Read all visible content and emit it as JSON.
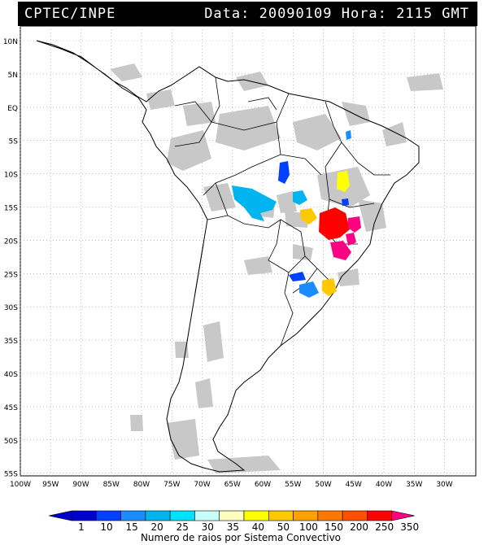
{
  "header": {
    "source": "CPTEC/INPE",
    "datetime": "Data: 20090109 Hora: 2115 GMT"
  },
  "map": {
    "lat_labels": [
      "10N",
      "5N",
      "EQ",
      "5S",
      "10S",
      "15S",
      "20S",
      "25S",
      "30S",
      "35S",
      "40S",
      "45S",
      "50S",
      "55S"
    ],
    "lon_labels": [
      "100W",
      "95W",
      "90W",
      "85W",
      "80W",
      "75W",
      "70W",
      "65W",
      "60W",
      "55W",
      "50W",
      "45W",
      "40W",
      "35W",
      "30W"
    ]
  },
  "legend": {
    "ticks": [
      "1",
      "10",
      "15",
      "20",
      "25",
      "30",
      "35",
      "40",
      "50",
      "100",
      "150",
      "200",
      "250",
      "350"
    ],
    "colors": [
      "#0000cc",
      "#0040ff",
      "#1a8cff",
      "#00b4f0",
      "#00e0ff",
      "#c8fff8",
      "#ffffc0",
      "#ffff00",
      "#ffc800",
      "#ffa000",
      "#ff7800",
      "#ff5000",
      "#ff0000",
      "#ff0080"
    ],
    "caption": "Numero de raios por Sistema Convectivo"
  }
}
